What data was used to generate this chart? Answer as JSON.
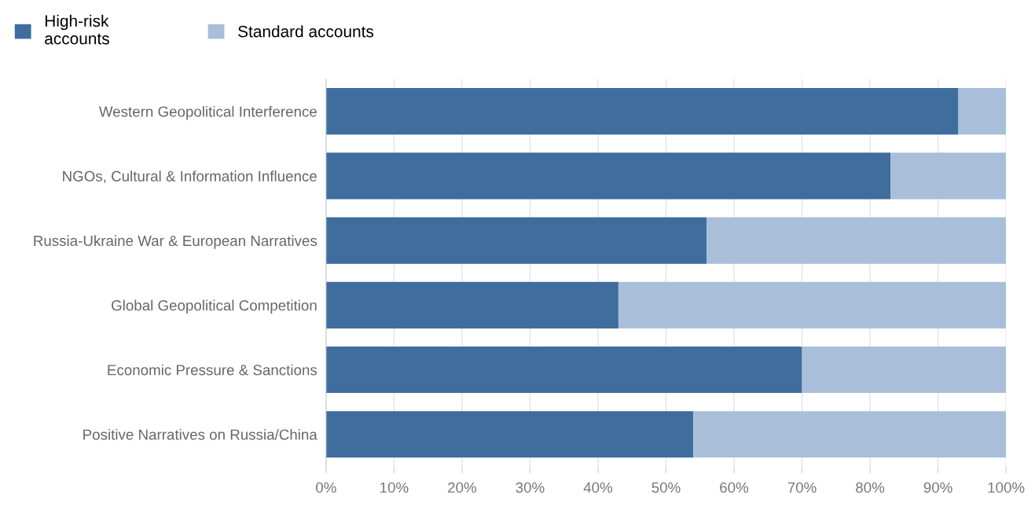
{
  "chart_data": {
    "type": "bar",
    "orientation": "horizontal",
    "stacked": true,
    "categories": [
      "Western Geopolitical Interference",
      "NGOs, Cultural & Information Influence",
      "Russia-Ukraine War & European Narratives",
      "Global Geopolitical Competition",
      "Economic Pressure & Sanctions",
      "Positive Narratives on Russia/China"
    ],
    "series": [
      {
        "name": "High-risk\naccounts",
        "color": "#3f6d9e",
        "values": [
          93,
          83,
          56,
          43,
          70,
          54
        ]
      },
      {
        "name": "Standard accounts",
        "color": "#a9bfd9",
        "values": [
          7,
          17,
          44,
          57,
          30,
          46
        ]
      }
    ],
    "xlim": [
      0,
      100
    ],
    "xticks": [
      {
        "value": 0,
        "label": "0%"
      },
      {
        "value": 10,
        "label": "10%"
      },
      {
        "value": 20,
        "label": "20%"
      },
      {
        "value": 30,
        "label": "30%"
      },
      {
        "value": 40,
        "label": "40%"
      },
      {
        "value": 50,
        "label": "50%"
      },
      {
        "value": 60,
        "label": "60%"
      },
      {
        "value": 70,
        "label": "70%"
      },
      {
        "value": 80,
        "label": "80%"
      },
      {
        "value": 90,
        "label": "90%"
      },
      {
        "value": 100,
        "label": "100%"
      }
    ],
    "grid": "x",
    "legend": "top left"
  }
}
